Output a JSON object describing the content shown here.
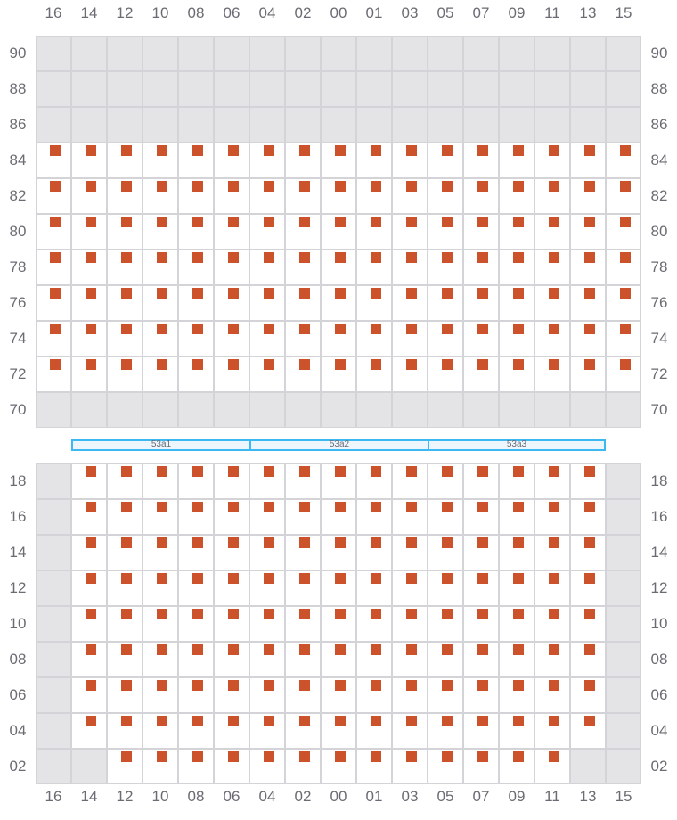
{
  "colors": {
    "marker": "#cc522b",
    "disabled": "#e4e4e7",
    "band_border": "#3bb9f0"
  },
  "columns": [
    "16",
    "14",
    "12",
    "10",
    "08",
    "06",
    "04",
    "02",
    "00",
    "01",
    "03",
    "05",
    "07",
    "09",
    "11",
    "13",
    "15"
  ],
  "upper": {
    "rows": [
      "90",
      "88",
      "86",
      "84",
      "82",
      "80",
      "78",
      "76",
      "74",
      "72",
      "70"
    ],
    "states": [
      [
        0,
        0,
        0,
        0,
        0,
        0,
        0,
        0,
        0,
        0,
        0,
        0,
        0,
        0,
        0,
        0,
        0
      ],
      [
        0,
        0,
        0,
        0,
        0,
        0,
        0,
        0,
        0,
        0,
        0,
        0,
        0,
        0,
        0,
        0,
        0
      ],
      [
        0,
        0,
        0,
        0,
        0,
        0,
        0,
        0,
        0,
        0,
        0,
        0,
        0,
        0,
        0,
        0,
        0
      ],
      [
        1,
        1,
        1,
        1,
        1,
        1,
        1,
        1,
        1,
        1,
        1,
        1,
        1,
        1,
        1,
        1,
        1
      ],
      [
        1,
        1,
        1,
        1,
        1,
        1,
        1,
        1,
        1,
        1,
        1,
        1,
        1,
        1,
        1,
        1,
        1
      ],
      [
        1,
        1,
        1,
        1,
        1,
        1,
        1,
        1,
        1,
        1,
        1,
        1,
        1,
        1,
        1,
        1,
        1
      ],
      [
        1,
        1,
        1,
        1,
        1,
        1,
        1,
        1,
        1,
        1,
        1,
        1,
        1,
        1,
        1,
        1,
        1
      ],
      [
        1,
        1,
        1,
        1,
        1,
        1,
        1,
        1,
        1,
        1,
        1,
        1,
        1,
        1,
        1,
        1,
        1
      ],
      [
        1,
        1,
        1,
        1,
        1,
        1,
        1,
        1,
        1,
        1,
        1,
        1,
        1,
        1,
        1,
        1,
        1
      ],
      [
        1,
        1,
        1,
        1,
        1,
        1,
        1,
        1,
        1,
        1,
        1,
        1,
        1,
        1,
        1,
        1,
        1
      ],
      [
        0,
        0,
        0,
        0,
        0,
        0,
        0,
        0,
        0,
        0,
        0,
        0,
        0,
        0,
        0,
        0,
        0
      ]
    ]
  },
  "bands": [
    "53a1",
    "53a2",
    "53a3"
  ],
  "lower": {
    "rows": [
      "18",
      "16",
      "14",
      "12",
      "10",
      "08",
      "06",
      "04",
      "02"
    ],
    "states": [
      [
        0,
        1,
        1,
        1,
        1,
        1,
        1,
        1,
        1,
        1,
        1,
        1,
        1,
        1,
        1,
        1,
        0
      ],
      [
        0,
        1,
        1,
        1,
        1,
        1,
        1,
        1,
        1,
        1,
        1,
        1,
        1,
        1,
        1,
        1,
        0
      ],
      [
        0,
        1,
        1,
        1,
        1,
        1,
        1,
        1,
        1,
        1,
        1,
        1,
        1,
        1,
        1,
        1,
        0
      ],
      [
        0,
        1,
        1,
        1,
        1,
        1,
        1,
        1,
        1,
        1,
        1,
        1,
        1,
        1,
        1,
        1,
        0
      ],
      [
        0,
        1,
        1,
        1,
        1,
        1,
        1,
        1,
        1,
        1,
        1,
        1,
        1,
        1,
        1,
        1,
        0
      ],
      [
        0,
        1,
        1,
        1,
        1,
        1,
        1,
        1,
        1,
        1,
        1,
        1,
        1,
        1,
        1,
        1,
        0
      ],
      [
        0,
        1,
        1,
        1,
        1,
        1,
        1,
        1,
        1,
        1,
        1,
        1,
        1,
        1,
        1,
        1,
        0
      ],
      [
        0,
        1,
        1,
        1,
        1,
        1,
        1,
        1,
        1,
        1,
        1,
        1,
        1,
        1,
        1,
        1,
        0
      ],
      [
        0,
        0,
        1,
        1,
        1,
        1,
        1,
        1,
        1,
        1,
        1,
        1,
        1,
        1,
        1,
        0,
        0
      ]
    ]
  }
}
